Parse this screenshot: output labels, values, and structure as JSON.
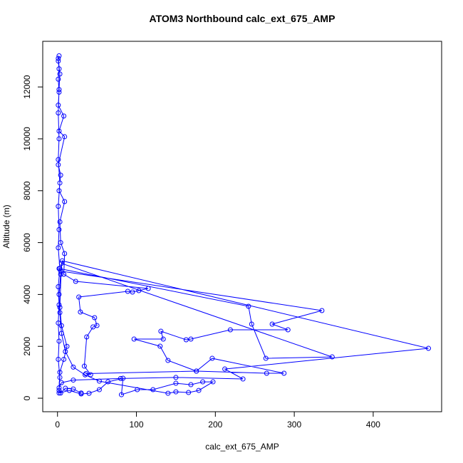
{
  "chart_data": {
    "type": "line",
    "markers": "open-circle",
    "color": "#0000ff",
    "title": "ATOM3 Northbound calc_ext_675_AMP",
    "x_label": "calc_ext_675_AMP",
    "y_label": "Altitude (m)",
    "xlim": [
      -18.7,
      486.7
    ],
    "ylim": [
      -520,
      13760
    ],
    "xticks": [
      0,
      100,
      200,
      300,
      400
    ],
    "yticks": [
      0,
      2000,
      4000,
      6000,
      8000,
      10000,
      12000
    ],
    "x": [
      2,
      15,
      30,
      40,
      53,
      64,
      83,
      81,
      101,
      121,
      150,
      169,
      184,
      197,
      179,
      166,
      150,
      140,
      53,
      35,
      20,
      10,
      5,
      3,
      2,
      4,
      6,
      470,
      212,
      235,
      150,
      80,
      20,
      5,
      2,
      3,
      8,
      12,
      5,
      3,
      5,
      348,
      264,
      246,
      242,
      2,
      4,
      335,
      272,
      292,
      219,
      169,
      163,
      131,
      134,
      97,
      130,
      140,
      176,
      196,
      287,
      265,
      176,
      36,
      42,
      34,
      37,
      45,
      50,
      47,
      29,
      27,
      89,
      95,
      103,
      115,
      23,
      8,
      9,
      4,
      3,
      9,
      2,
      4,
      1,
      9,
      2,
      8,
      1,
      2,
      1,
      2,
      1,
      2,
      1,
      3,
      2,
      1,
      2,
      1,
      3,
      1,
      2,
      1,
      3,
      1,
      2,
      1,
      2,
      1,
      3,
      2,
      4,
      10,
      20,
      30
    ],
    "values": [
      200,
      300,
      165,
      190,
      330,
      632,
      769,
      137,
      330,
      330,
      577,
      522,
      632,
      632,
      302,
      220,
      247,
      192,
      659,
      900,
      1200,
      1800,
      2500,
      3300,
      4000,
      4780,
      5300,
      1923,
      1126,
      742,
      800,
      760,
      700,
      600,
      400,
      1000,
      1500,
      2000,
      2800,
      3500,
      5200,
      1593,
      1538,
      2857,
      3544,
      5000,
      4900,
      3379,
      2857,
      2637,
      2637,
      2280,
      2253,
      2582,
      2280,
      2280,
      2005,
      1456,
      1044,
      1538,
      962,
      962,
      1044,
      950,
      907,
      1236,
      2363,
      2747,
      2802,
      3104,
      3324,
      3901,
      4121,
      4093,
      4148,
      4231,
      4505,
      4780,
      5577,
      6000,
      6800,
      7582,
      8000,
      8600,
      9000,
      10082,
      10300,
      10879,
      11300,
      11800,
      12300,
      12700,
      13000,
      13200,
      13100,
      12500,
      11900,
      11000,
      10000,
      9200,
      8300,
      7400,
      6500,
      5800,
      5000,
      4300,
      3600,
      2900,
      2200,
      1500,
      800,
      300,
      200,
      385,
      357,
      200
    ]
  }
}
